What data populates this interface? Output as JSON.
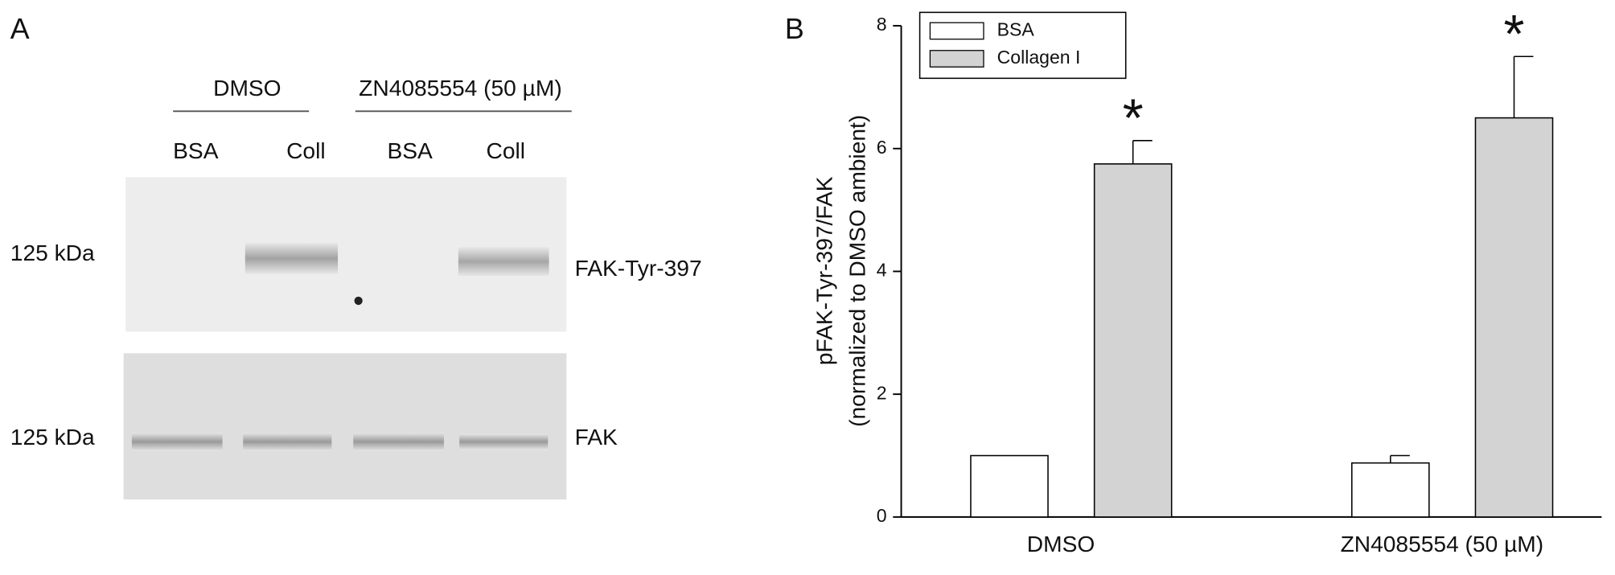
{
  "panels": [
    "A",
    "B"
  ],
  "blot": {
    "groups": [
      "DMSO",
      "ZN4085554 (50 µM)"
    ],
    "lanes": [
      "BSA",
      "Coll",
      "BSA",
      "Coll"
    ],
    "rows": [
      {
        "size": "125 kDa",
        "label": "FAK-Tyr-397"
      },
      {
        "size": "125 kDa",
        "label": "FAK"
      }
    ]
  },
  "chart_data": {
    "type": "bar",
    "ylabel": [
      "pFAK-Tyr-397/FAK",
      "(normalized to DMSO ambient)"
    ],
    "categories": [
      "DMSO",
      "ZN4085554 (50 µM)"
    ],
    "series": [
      {
        "name": "BSA",
        "color": "#ffffff",
        "values": [
          1.0,
          0.88
        ],
        "errors": [
          0,
          0.12
        ]
      },
      {
        "name": "Collagen I",
        "color": "#d3d3d3",
        "values": [
          5.75,
          6.5
        ],
        "errors": [
          0.38,
          1.0
        ]
      }
    ],
    "annotations": [
      "*",
      "*"
    ],
    "ylim": [
      0,
      8
    ],
    "yticks": [
      0,
      2,
      4,
      6,
      8
    ],
    "legend": "upper-left"
  }
}
